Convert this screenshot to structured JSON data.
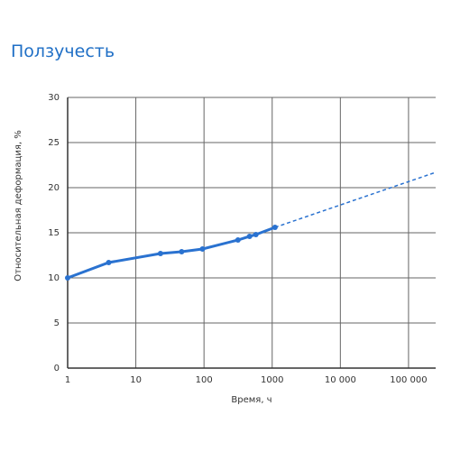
{
  "chart_data": {
    "type": "line",
    "title": "Ползучесть",
    "xlabel": "Время, ч",
    "ylabel": "Относительная деформация, %",
    "log_x": true,
    "grid": true,
    "color": "#2a72d0",
    "xlim": [
      1,
      250000
    ],
    "ylim": [
      0,
      30
    ],
    "xticks": [
      1,
      10,
      100,
      1000,
      {
        "value": 10000,
        "label": "10 000"
      },
      {
        "value": 100000,
        "label": "100 000"
      }
    ],
    "yticks": [
      0,
      5,
      10,
      15,
      20,
      25,
      30
    ],
    "series": [
      {
        "color": "#2a72d0",
        "style": "solid",
        "markers": true,
        "x": [
          1,
          4,
          23,
          47,
          95,
          315,
          466,
          577,
          1100
        ],
        "values": [
          10,
          11.7,
          12.7,
          12.9,
          13.2,
          14.2,
          14.6,
          14.8,
          15.6
        ]
      },
      {
        "color": "#2a72d0",
        "style": "dashed",
        "markers": false,
        "x": [
          1100,
          250000
        ],
        "values": [
          15.6,
          21.7
        ]
      }
    ]
  }
}
